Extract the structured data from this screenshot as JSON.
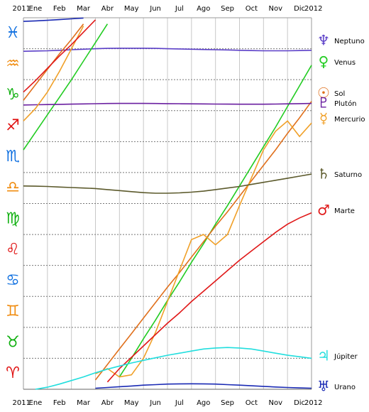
{
  "chart_data": {
    "type": "line",
    "categories": [
      "Ene",
      "Feb",
      "Mar",
      "Abr",
      "May",
      "Jun",
      "Jul",
      "Ago",
      "Sep",
      "Oct",
      "Nov",
      "Dic"
    ],
    "xticks": [
      {
        "value": 0,
        "label": "2011"
      },
      {
        "value": 12,
        "label": "2012"
      }
    ],
    "xlim": [
      0,
      12
    ],
    "x": [
      0,
      0.5,
      1,
      1.5,
      2,
      2.5,
      3,
      3.5,
      4,
      4.5,
      5,
      5.5,
      6,
      6.5,
      7,
      7.5,
      8,
      8.5,
      9,
      9.5,
      10,
      10.5,
      11,
      11.5,
      12
    ],
    "ylim": [
      0,
      360
    ],
    "yticks": [
      {
        "value": 15,
        "label": "♈"
      },
      {
        "value": 45,
        "label": "♉"
      },
      {
        "value": 75,
        "label": "♊"
      },
      {
        "value": 105,
        "label": "♋"
      },
      {
        "value": 135,
        "label": "♌"
      },
      {
        "value": 165,
        "label": "♍"
      },
      {
        "value": 195,
        "label": "♎"
      },
      {
        "value": 225,
        "label": "♏"
      },
      {
        "value": 255,
        "label": "♐"
      },
      {
        "value": 285,
        "label": "♑"
      },
      {
        "value": 315,
        "label": "♒"
      },
      {
        "value": 345,
        "label": "♓"
      }
    ],
    "ytick_colors": [
      "#e01010",
      "#10b010",
      "#f08c10",
      "#1070e0",
      "#e01010",
      "#10b010",
      "#f08c10",
      "#1070e0",
      "#e01010",
      "#10b010",
      "#f08c10",
      "#1070e0"
    ],
    "grid": true,
    "series": [
      {
        "name": "Neptuno",
        "symbol": "♆",
        "color": "#5b3fc8",
        "values": [
          327.5,
          327.8,
          328,
          328.5,
          329,
          329.5,
          330,
          330.3,
          330.5,
          330.5,
          330.5,
          330.3,
          330,
          329.8,
          329.5,
          329.2,
          329,
          328.8,
          328.5,
          328.2,
          328,
          328,
          328,
          328.2,
          328.5
        ]
      },
      {
        "name": "Venus",
        "symbol": "♀",
        "color": "#22cc22",
        "values": [
          232,
          249,
          266,
          283,
          300,
          318,
          336,
          354,
          12,
          30,
          49,
          67,
          86,
          104,
          123,
          141,
          160,
          178,
          197,
          216,
          235,
          254,
          274,
          294,
          314
        ]
      },
      {
        "name": "Sol",
        "symbol": "☉",
        "color": "#e0701c",
        "values": [
          280,
          295,
          310,
          325,
          339,
          354,
          9,
          24,
          39,
          54,
          69,
          84,
          99,
          113,
          128,
          143,
          158,
          172,
          187,
          202,
          217,
          232,
          248,
          263,
          279
        ]
      },
      {
        "name": "Plutón",
        "symbol": "♇",
        "color": "#6a1fa0",
        "values": [
          275.5,
          275.7,
          275.9,
          276.1,
          276.3,
          276.5,
          276.7,
          276.9,
          277,
          277,
          277,
          276.9,
          276.8,
          276.7,
          276.6,
          276.5,
          276.4,
          276.3,
          276.2,
          276.2,
          276.2,
          276.4,
          276.6,
          276.8,
          277
        ]
      },
      {
        "name": "Mercurio",
        "symbol": "☿",
        "color": "#f0a028",
        "values": [
          260,
          272,
          288,
          308,
          330,
          352,
          15,
          20,
          12,
          14,
          30,
          55,
          85,
          115,
          145,
          150,
          140,
          150,
          178,
          205,
          232,
          250,
          260,
          245,
          258
        ]
      },
      {
        "name": "Saturno",
        "symbol": "♄",
        "color": "#5c5a2c",
        "values": [
          197,
          196.8,
          196.5,
          196,
          195.5,
          195,
          194.5,
          193.5,
          192.5,
          191.5,
          190.5,
          190,
          190,
          190.3,
          191,
          192,
          193.5,
          195,
          196.5,
          198.5,
          200.5,
          202.5,
          204.5,
          206.5,
          208.5
        ]
      },
      {
        "name": "Marte",
        "symbol": "♂",
        "color": "#e01818",
        "values": [
          288,
          299,
          311,
          323,
          334,
          346,
          358,
          7,
          20,
          31,
          42,
          53,
          64,
          74,
          85,
          95,
          105,
          115,
          125,
          134,
          143,
          152,
          160,
          166,
          171
        ]
      },
      {
        "name": "Júpiter",
        "symbol": "♃",
        "color": "#22dede",
        "values": [
          null,
          0,
          2,
          5,
          8.5,
          12,
          16,
          19.5,
          22.5,
          25.5,
          28,
          30.5,
          33,
          35,
          37,
          39,
          40,
          40.5,
          40,
          39,
          37,
          35,
          33,
          31.5,
          30
        ]
      },
      {
        "name": "Urano",
        "symbol": "♅",
        "color": "#1a2ab4",
        "values": [
          356.5,
          357,
          357.5,
          358.2,
          359,
          359.7,
          1,
          1.7,
          2.5,
          3.2,
          4,
          4.5,
          5,
          5.2,
          5.3,
          5.2,
          5,
          4.5,
          4,
          3.4,
          2.8,
          2.2,
          1.7,
          1.3,
          1
        ]
      }
    ]
  }
}
